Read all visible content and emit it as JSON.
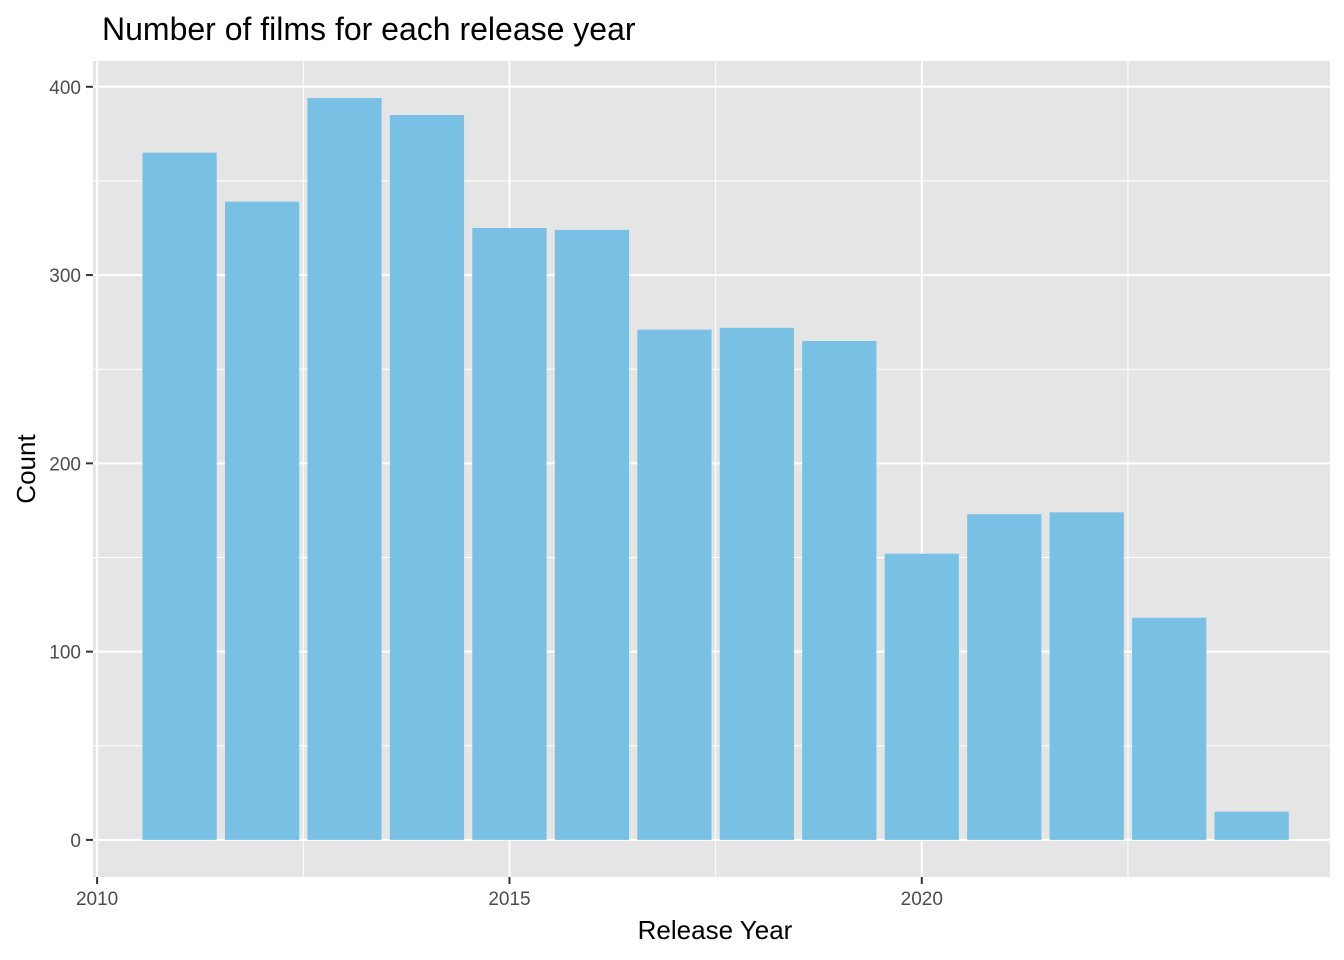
{
  "chart_data": {
    "type": "bar",
    "title": "Number of films for each release year",
    "xlabel": "Release Year",
    "ylabel": "Count",
    "x": [
      2011,
      2012,
      2013,
      2014,
      2015,
      2016,
      2017,
      2018,
      2019,
      2020,
      2021,
      2022,
      2023,
      2024
    ],
    "values": [
      365,
      339,
      394,
      385,
      325,
      324,
      271,
      272,
      265,
      152,
      173,
      174,
      118,
      15
    ],
    "xlim": [
      2009.95,
      2024.95
    ],
    "ylim": [
      -19.7,
      413.7
    ],
    "x_ticks": [
      2010,
      2015,
      2020
    ],
    "x_tick_labels": [
      "2010",
      "2015",
      "2020"
    ],
    "y_ticks": [
      0,
      100,
      200,
      300,
      400
    ],
    "y_tick_labels": [
      "0",
      "100",
      "200",
      "300",
      "400"
    ],
    "grid": true,
    "colors": {
      "bar": "#79c1e4",
      "panel": "#e5e5e5",
      "grid": "#ffffff",
      "tick": "#333333"
    }
  }
}
